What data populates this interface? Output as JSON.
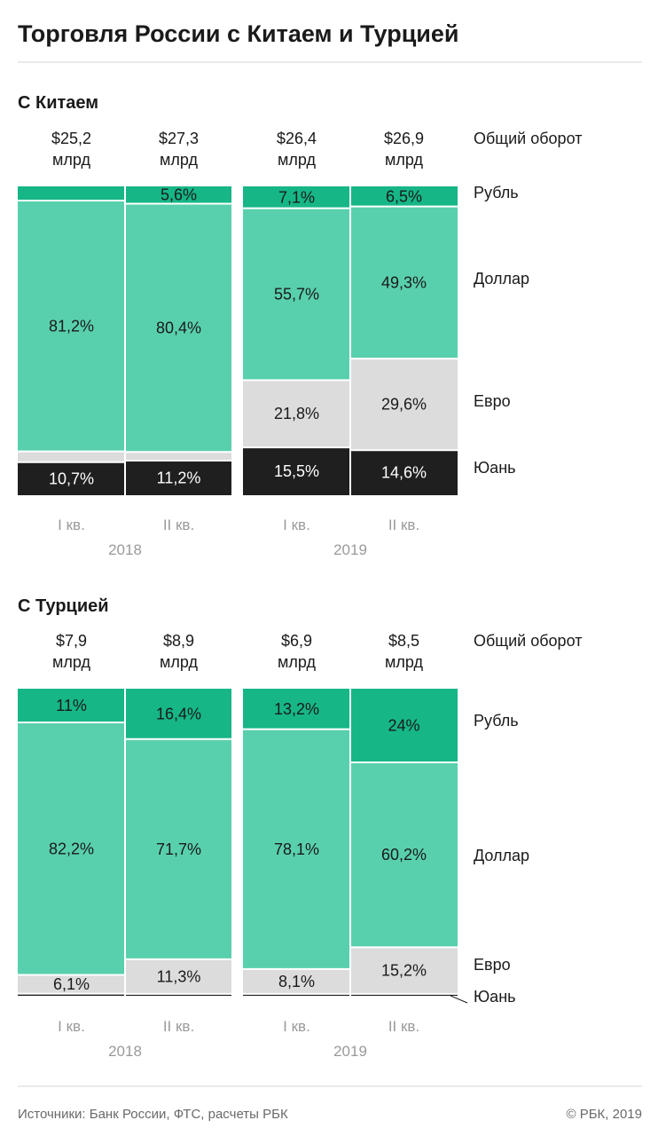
{
  "title": "Торговля России с Китаем и Турцией",
  "source": "Источники: Банк России, ФТС, расчеты РБК",
  "copyright": "© РБК, 2019",
  "colors": {
    "ruble": "#16b687",
    "dollar": "#59d0ad",
    "euro": "#dcdcdc",
    "yuan": "#1f1f1f",
    "divider": "#cfcfcf"
  },
  "currency_labels": [
    "Рубль",
    "Доллар",
    "Евро",
    "Юань"
  ],
  "total_label": "Общий оборот",
  "chart_data": [
    {
      "type": "bar",
      "stacked": "100%",
      "title": "С Китаем",
      "categories": [
        "I кв.",
        "II кв.",
        "I кв.",
        "II кв."
      ],
      "years": [
        "2018",
        "2019"
      ],
      "totals": [
        [
          "$25,2",
          "млрд"
        ],
        [
          "$27,3",
          "млрд"
        ],
        [
          "$26,4",
          "млрд"
        ],
        [
          "$26,9",
          "млрд"
        ]
      ],
      "series": [
        {
          "name": "Рубль",
          "values": [
            4.6,
            5.6,
            7.1,
            6.5
          ],
          "labels": [
            "",
            "5,6%",
            "7,1%",
            "6,5%"
          ]
        },
        {
          "name": "Доллар",
          "values": [
            81.2,
            80.4,
            55.7,
            49.3
          ],
          "labels": [
            "81,2%",
            "80,4%",
            "55,7%",
            "49,3%"
          ]
        },
        {
          "name": "Евро",
          "values": [
            3.5,
            2.8,
            21.8,
            29.6
          ],
          "labels": [
            "",
            "",
            "21,8%",
            "29,6%"
          ]
        },
        {
          "name": "Юань",
          "values": [
            10.7,
            11.2,
            15.5,
            14.6
          ],
          "labels": [
            "10,7%",
            "11,2%",
            "15,5%",
            "14,6%"
          ]
        }
      ]
    },
    {
      "type": "bar",
      "stacked": "100%",
      "title": "С Турцией",
      "categories": [
        "I кв.",
        "II кв.",
        "I кв.",
        "II кв."
      ],
      "years": [
        "2018",
        "2019"
      ],
      "totals": [
        [
          "$7,9",
          "млрд"
        ],
        [
          "$8,9",
          "млрд"
        ],
        [
          "$6,9",
          "млрд"
        ],
        [
          "$8,5",
          "млрд"
        ]
      ],
      "series": [
        {
          "name": "Рубль",
          "values": [
            11,
            16.4,
            13.2,
            24
          ],
          "labels": [
            "11%",
            "16,4%",
            "13,2%",
            "24%"
          ]
        },
        {
          "name": "Доллар",
          "values": [
            82.2,
            71.7,
            78.1,
            60.2
          ],
          "labels": [
            "82,2%",
            "71,7%",
            "78,1%",
            "60,2%"
          ]
        },
        {
          "name": "Евро",
          "values": [
            6.1,
            11.3,
            8.1,
            15.2
          ],
          "labels": [
            "6,1%",
            "11,3%",
            "8,1%",
            "15,2%"
          ]
        },
        {
          "name": "Юань",
          "values": [
            0.7,
            0.6,
            0.6,
            0.6
          ],
          "labels": [
            "",
            "",
            "",
            ""
          ]
        }
      ]
    }
  ]
}
